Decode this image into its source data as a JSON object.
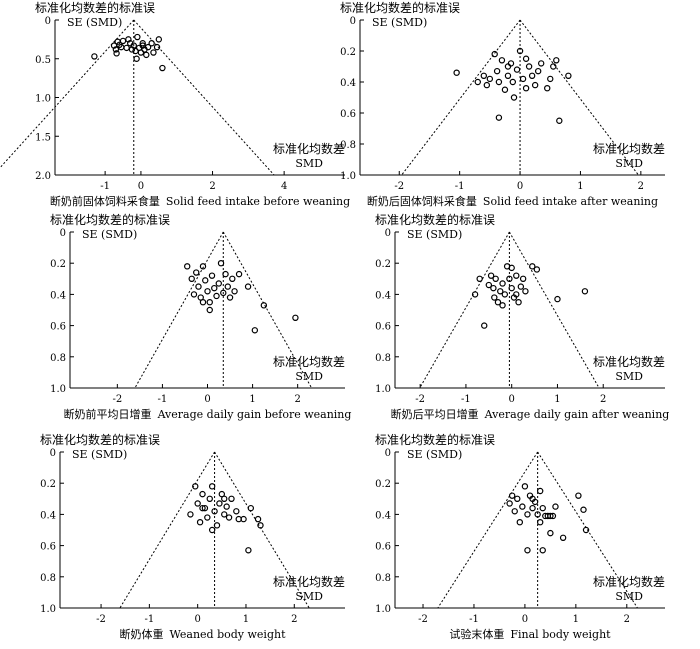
{
  "chart_data": [
    {
      "type": "scatter",
      "title": "",
      "ylabel_cn": "标准化均数差的标准误",
      "ylabel": "SE (SMD)",
      "xlabel_right_cn": "标准化均数差",
      "xlabel_right": "SMD",
      "caption_cn": "断奶前固体饲料采食量",
      "caption": "Solid feed intake before weaning",
      "xlim": [
        -2.4,
        5.7
      ],
      "xticks": [
        -1,
        0,
        2,
        4
      ],
      "xtick_labels": [
        "-1",
        "0",
        "2",
        "4"
      ],
      "ylim": [
        0,
        2.0
      ],
      "yticks": [
        0,
        0.5,
        1.0,
        1.5,
        2.0
      ],
      "ytick_labels": [
        "0",
        "0.5",
        "1.0",
        "1.5",
        "2.0"
      ],
      "pooled_smd": -0.2,
      "points": [
        {
          "x": -1.3,
          "y": 0.47
        },
        {
          "x": -0.75,
          "y": 0.33
        },
        {
          "x": -0.7,
          "y": 0.38
        },
        {
          "x": -0.68,
          "y": 0.43
        },
        {
          "x": -0.65,
          "y": 0.28
        },
        {
          "x": -0.6,
          "y": 0.32
        },
        {
          "x": -0.55,
          "y": 0.35
        },
        {
          "x": -0.5,
          "y": 0.27
        },
        {
          "x": -0.4,
          "y": 0.36
        },
        {
          "x": -0.35,
          "y": 0.25
        },
        {
          "x": -0.3,
          "y": 0.3
        },
        {
          "x": -0.25,
          "y": 0.38
        },
        {
          "x": -0.2,
          "y": 0.33
        },
        {
          "x": -0.15,
          "y": 0.4
        },
        {
          "x": -0.1,
          "y": 0.22
        },
        {
          "x": -0.05,
          "y": 0.36
        },
        {
          "x": 0.0,
          "y": 0.42
        },
        {
          "x": 0.05,
          "y": 0.3
        },
        {
          "x": 0.1,
          "y": 0.38
        },
        {
          "x": 0.15,
          "y": 0.45
        },
        {
          "x": 0.2,
          "y": 0.35
        },
        {
          "x": 0.3,
          "y": 0.3
        },
        {
          "x": 0.35,
          "y": 0.42
        },
        {
          "x": 0.45,
          "y": 0.35
        },
        {
          "x": 0.5,
          "y": 0.25
        },
        {
          "x": -0.12,
          "y": 0.5
        },
        {
          "x": 0.6,
          "y": 0.62
        },
        {
          "x": 0.05,
          "y": 0.33
        }
      ]
    },
    {
      "type": "scatter",
      "title": "",
      "ylabel_cn": "标准化均数差的标准误",
      "ylabel": "SE (SMD)",
      "xlabel_right_cn": "标准化均数差",
      "xlabel_right": "SMD",
      "caption_cn": "断奶后固体饲料采食量",
      "caption": "Solid feed intake after weaning",
      "xlim": [
        -2.65,
        2.4
      ],
      "xticks": [
        -2,
        -1,
        0,
        1,
        2
      ],
      "xtick_labels": [
        "-2",
        "-1",
        "0",
        "1",
        "2"
      ],
      "ylim": [
        0,
        2.0
      ],
      "yticks": [
        0,
        0.2,
        0.4,
        0.6,
        0.8,
        1.0
      ],
      "ytick_labels": [
        "0",
        "0.2",
        "0.4",
        "0.6",
        "0.8",
        "1.0"
      ],
      "pooled_smd": 0.0,
      "points": [
        {
          "x": -1.05,
          "y": 0.34
        },
        {
          "x": -0.7,
          "y": 0.4
        },
        {
          "x": -0.6,
          "y": 0.36
        },
        {
          "x": -0.55,
          "y": 0.42
        },
        {
          "x": -0.5,
          "y": 0.38
        },
        {
          "x": -0.42,
          "y": 0.22
        },
        {
          "x": -0.38,
          "y": 0.33
        },
        {
          "x": -0.35,
          "y": 0.4
        },
        {
          "x": -0.3,
          "y": 0.26
        },
        {
          "x": -0.25,
          "y": 0.45
        },
        {
          "x": -0.2,
          "y": 0.36
        },
        {
          "x": -0.15,
          "y": 0.28
        },
        {
          "x": -0.12,
          "y": 0.4
        },
        {
          "x": -0.1,
          "y": 0.5
        },
        {
          "x": -0.05,
          "y": 0.32
        },
        {
          "x": 0.0,
          "y": 0.2
        },
        {
          "x": 0.05,
          "y": 0.38
        },
        {
          "x": 0.1,
          "y": 0.44
        },
        {
          "x": 0.15,
          "y": 0.3
        },
        {
          "x": 0.2,
          "y": 0.36
        },
        {
          "x": 0.25,
          "y": 0.42
        },
        {
          "x": 0.3,
          "y": 0.33
        },
        {
          "x": 0.35,
          "y": 0.28
        },
        {
          "x": 0.45,
          "y": 0.44
        },
        {
          "x": 0.5,
          "y": 0.38
        },
        {
          "x": 0.55,
          "y": 0.3
        },
        {
          "x": 0.6,
          "y": 0.26
        },
        {
          "x": 0.8,
          "y": 0.36
        },
        {
          "x": 0.65,
          "y": 0.65
        },
        {
          "x": -0.35,
          "y": 0.63
        },
        {
          "x": -0.2,
          "y": 0.3
        },
        {
          "x": 0.1,
          "y": 0.25
        }
      ]
    },
    {
      "type": "scatter",
      "title": "",
      "ylabel_cn": "标准化均数差的标准误",
      "ylabel": "SE (SMD)",
      "xlabel_right_cn": "标准化均数差",
      "xlabel_right": "SMD",
      "caption_cn": "断奶前平均日增重",
      "caption": "Average daily gain before weaning",
      "xlim": [
        -3.05,
        3.05
      ],
      "xticks": [
        -2,
        -1,
        0,
        1,
        2
      ],
      "xtick_labels": [
        "-2",
        "-1",
        "0",
        "1",
        "2"
      ],
      "ylim": [
        0,
        1.0
      ],
      "yticks": [
        0,
        0.2,
        0.4,
        0.6,
        0.8,
        1.0
      ],
      "ytick_labels": [
        "0",
        "0.2",
        "0.4",
        "0.6",
        "0.8",
        "1.0"
      ],
      "pooled_smd": 0.35,
      "points": [
        {
          "x": -0.45,
          "y": 0.22
        },
        {
          "x": -0.35,
          "y": 0.3
        },
        {
          "x": -0.3,
          "y": 0.4
        },
        {
          "x": -0.25,
          "y": 0.26
        },
        {
          "x": -0.2,
          "y": 0.35
        },
        {
          "x": -0.15,
          "y": 0.42
        },
        {
          "x": -0.1,
          "y": 0.22
        },
        {
          "x": -0.05,
          "y": 0.31
        },
        {
          "x": 0.0,
          "y": 0.38
        },
        {
          "x": 0.05,
          "y": 0.45
        },
        {
          "x": 0.1,
          "y": 0.28
        },
        {
          "x": 0.15,
          "y": 0.36
        },
        {
          "x": 0.2,
          "y": 0.41
        },
        {
          "x": 0.25,
          "y": 0.33
        },
        {
          "x": 0.3,
          "y": 0.2
        },
        {
          "x": 0.35,
          "y": 0.39
        },
        {
          "x": 0.4,
          "y": 0.27
        },
        {
          "x": 0.45,
          "y": 0.35
        },
        {
          "x": 0.5,
          "y": 0.42
        },
        {
          "x": 0.55,
          "y": 0.3
        },
        {
          "x": 0.6,
          "y": 0.38
        },
        {
          "x": 0.7,
          "y": 0.27
        },
        {
          "x": 0.05,
          "y": 0.5
        },
        {
          "x": 1.05,
          "y": 0.63
        },
        {
          "x": 1.25,
          "y": 0.47
        },
        {
          "x": 1.95,
          "y": 0.55
        },
        {
          "x": 0.9,
          "y": 0.35
        },
        {
          "x": -0.1,
          "y": 0.45
        }
      ]
    },
    {
      "type": "scatter",
      "title": "",
      "ylabel_cn": "标准化均数差的标准误",
      "ylabel": "SE (SMD)",
      "xlabel_right_cn": "标准化均数差",
      "xlabel_right": "SMD",
      "caption_cn": "断奶后平均日增重",
      "caption": "Average daily gain after weaning",
      "xlim": [
        -2.55,
        3.35
      ],
      "xticks": [
        -2,
        -1,
        0,
        1,
        2
      ],
      "xtick_labels": [
        "-2",
        "-1",
        "0",
        "1",
        "2"
      ],
      "ylim": [
        0,
        1.0
      ],
      "yticks": [
        0,
        0.2,
        0.4,
        0.6,
        0.8,
        1.0
      ],
      "ytick_labels": [
        "0",
        "0.2",
        "0.4",
        "0.6",
        "0.8",
        "1.0"
      ],
      "pooled_smd": -0.05,
      "points": [
        {
          "x": -0.8,
          "y": 0.4
        },
        {
          "x": -0.7,
          "y": 0.3
        },
        {
          "x": -0.6,
          "y": 0.6
        },
        {
          "x": -0.5,
          "y": 0.34
        },
        {
          "x": -0.45,
          "y": 0.28
        },
        {
          "x": -0.4,
          "y": 0.36
        },
        {
          "x": -0.38,
          "y": 0.42
        },
        {
          "x": -0.35,
          "y": 0.3
        },
        {
          "x": -0.3,
          "y": 0.45
        },
        {
          "x": -0.25,
          "y": 0.38
        },
        {
          "x": -0.2,
          "y": 0.33
        },
        {
          "x": -0.15,
          "y": 0.4
        },
        {
          "x": -0.1,
          "y": 0.22
        },
        {
          "x": -0.05,
          "y": 0.3
        },
        {
          "x": 0.0,
          "y": 0.36
        },
        {
          "x": 0.05,
          "y": 0.42
        },
        {
          "x": 0.1,
          "y": 0.28
        },
        {
          "x": 0.15,
          "y": 0.45
        },
        {
          "x": 0.2,
          "y": 0.35
        },
        {
          "x": 0.25,
          "y": 0.3
        },
        {
          "x": 0.3,
          "y": 0.38
        },
        {
          "x": 0.45,
          "y": 0.22
        },
        {
          "x": 0.55,
          "y": 0.24
        },
        {
          "x": 0.0,
          "y": 0.23
        },
        {
          "x": 1.0,
          "y": 0.43
        },
        {
          "x": 1.6,
          "y": 0.38
        },
        {
          "x": -0.2,
          "y": 0.47
        },
        {
          "x": 0.1,
          "y": 0.4
        }
      ]
    },
    {
      "type": "scatter",
      "title": "",
      "ylabel_cn": "标准化均数差的标准误",
      "ylabel": "SE (SMD)",
      "xlabel_right_cn": "标准化均数差",
      "xlabel_right": "SMD",
      "caption_cn": "断奶体重",
      "caption": "Weaned body weight",
      "xlim": [
        -2.85,
        3.05
      ],
      "xticks": [
        -2,
        -1,
        0,
        1,
        2
      ],
      "xtick_labels": [
        "-2",
        "-1",
        "0",
        "1",
        "2"
      ],
      "ylim": [
        0,
        1.0
      ],
      "yticks": [
        0,
        0.2,
        0.4,
        0.6,
        0.8,
        1.0
      ],
      "ytick_labels": [
        "0",
        "0.2",
        "0.4",
        "0.6",
        "0.8",
        "1.0"
      ],
      "pooled_smd": 0.35,
      "points": [
        {
          "x": -0.15,
          "y": 0.4
        },
        {
          "x": -0.05,
          "y": 0.22
        },
        {
          "x": 0.0,
          "y": 0.33
        },
        {
          "x": 0.05,
          "y": 0.45
        },
        {
          "x": 0.1,
          "y": 0.27
        },
        {
          "x": 0.15,
          "y": 0.36
        },
        {
          "x": 0.2,
          "y": 0.42
        },
        {
          "x": 0.25,
          "y": 0.3
        },
        {
          "x": 0.3,
          "y": 0.22
        },
        {
          "x": 0.35,
          "y": 0.38
        },
        {
          "x": 0.4,
          "y": 0.47
        },
        {
          "x": 0.45,
          "y": 0.33
        },
        {
          "x": 0.5,
          "y": 0.27
        },
        {
          "x": 0.55,
          "y": 0.4
        },
        {
          "x": 0.6,
          "y": 0.35
        },
        {
          "x": 0.65,
          "y": 0.42
        },
        {
          "x": 0.7,
          "y": 0.3
        },
        {
          "x": 0.8,
          "y": 0.38
        },
        {
          "x": 0.85,
          "y": 0.43
        },
        {
          "x": 0.95,
          "y": 0.43
        },
        {
          "x": 1.1,
          "y": 0.36
        },
        {
          "x": 1.25,
          "y": 0.43
        },
        {
          "x": 1.3,
          "y": 0.47
        },
        {
          "x": 1.05,
          "y": 0.63
        },
        {
          "x": 0.3,
          "y": 0.5
        },
        {
          "x": 0.1,
          "y": 0.36
        },
        {
          "x": 0.55,
          "y": 0.3
        }
      ]
    },
    {
      "type": "scatter",
      "title": "",
      "ylabel_cn": "标准化均数差的标准误",
      "ylabel": "SE (SMD)",
      "xlabel_right_cn": "标准化均数差",
      "xlabel_right": "SMD",
      "caption_cn": "试验末体重",
      "caption": "Final body weight",
      "xlim": [
        -2.55,
        2.75
      ],
      "xticks": [
        -2,
        -1,
        0,
        1,
        2
      ],
      "xtick_labels": [
        "-2",
        "-1",
        "0",
        "1",
        "2"
      ],
      "ylim": [
        0,
        1.0
      ],
      "yticks": [
        0,
        0.2,
        0.4,
        0.6,
        0.8,
        1.0
      ],
      "ytick_labels": [
        "0",
        "0.2",
        "0.4",
        "0.6",
        "0.8",
        "1.0"
      ],
      "pooled_smd": 0.25,
      "points": [
        {
          "x": -0.3,
          "y": 0.33
        },
        {
          "x": -0.25,
          "y": 0.28
        },
        {
          "x": -0.2,
          "y": 0.38
        },
        {
          "x": -0.15,
          "y": 0.3
        },
        {
          "x": -0.1,
          "y": 0.45
        },
        {
          "x": -0.05,
          "y": 0.35
        },
        {
          "x": 0.0,
          "y": 0.22
        },
        {
          "x": 0.05,
          "y": 0.4
        },
        {
          "x": 0.1,
          "y": 0.28
        },
        {
          "x": 0.15,
          "y": 0.36
        },
        {
          "x": 0.2,
          "y": 0.32
        },
        {
          "x": 0.25,
          "y": 0.4
        },
        {
          "x": 0.3,
          "y": 0.25
        },
        {
          "x": 0.35,
          "y": 0.36
        },
        {
          "x": 0.4,
          "y": 0.41
        },
        {
          "x": 0.45,
          "y": 0.41
        },
        {
          "x": 0.5,
          "y": 0.41
        },
        {
          "x": 0.55,
          "y": 0.41
        },
        {
          "x": 0.6,
          "y": 0.35
        },
        {
          "x": 0.5,
          "y": 0.52
        },
        {
          "x": 0.3,
          "y": 0.45
        },
        {
          "x": 0.05,
          "y": 0.63
        },
        {
          "x": 0.35,
          "y": 0.63
        },
        {
          "x": 0.75,
          "y": 0.55
        },
        {
          "x": 1.05,
          "y": 0.28
        },
        {
          "x": 1.15,
          "y": 0.37
        },
        {
          "x": 1.2,
          "y": 0.5
        },
        {
          "x": 0.15,
          "y": 0.3
        }
      ]
    }
  ]
}
